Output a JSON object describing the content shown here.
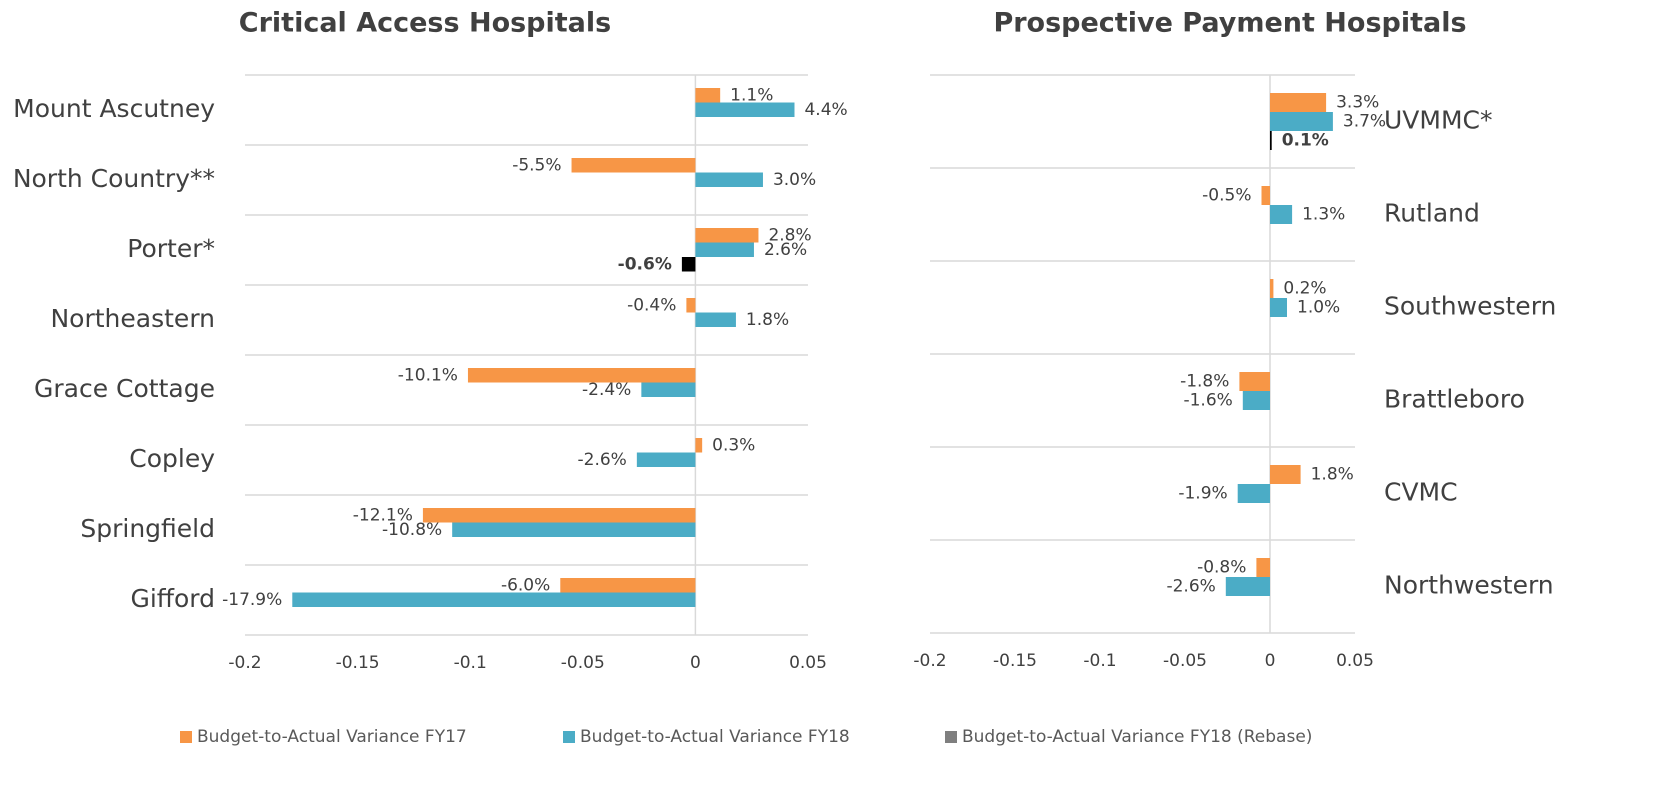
{
  "legend": [
    {
      "name": "Budget-to-Actual Variance FY17",
      "color": "#f79646"
    },
    {
      "name": "Budget-to-Actual Variance FY18",
      "color": "#4bacc6"
    },
    {
      "name": "Budget-to-Actual Variance FY18 (Rebase)",
      "color": "#7f7f7f"
    }
  ],
  "chart_data": [
    {
      "type": "hbar",
      "title": "Critical Access Hospitals",
      "categories": [
        "Mount Ascutney",
        "North Country**",
        "Porter*",
        "Northeastern",
        "Grace Cottage",
        "Copley",
        "Springfield",
        "Gifford"
      ],
      "series": [
        {
          "values": [
            0.011,
            -0.055,
            0.028,
            -0.004,
            -0.101,
            0.003,
            -0.121,
            -0.06
          ],
          "value_labels": [
            "1.1%",
            "-5.5%",
            "2.8%",
            "-0.4%",
            "-10.1%",
            "0.3%",
            "-12.1%",
            "-6.0%"
          ]
        },
        {
          "values": [
            0.044,
            0.03,
            0.026,
            0.018,
            -0.024,
            -0.026,
            -0.108,
            -0.179
          ],
          "value_labels": [
            "4.4%",
            "3.0%",
            "2.6%",
            "1.8%",
            "-2.4%",
            "-2.6%",
            "-10.8%",
            "-17.9%"
          ]
        },
        {
          "values": [
            null,
            null,
            -0.006,
            null,
            null,
            null,
            null,
            null
          ],
          "value_labels": [
            null,
            null,
            "-0.6%",
            null,
            null,
            null,
            null,
            null
          ]
        }
      ],
      "xlim": [
        -0.2,
        0.05
      ],
      "xticks": [
        -0.2,
        -0.15,
        -0.1,
        -0.05,
        0,
        0.05
      ]
    },
    {
      "type": "hbar",
      "title": "Prospective Payment Hospitals",
      "categories": [
        "UVMMC*",
        "Rutland",
        "Southwestern",
        "Brattleboro",
        "CVMC",
        "Northwestern"
      ],
      "series": [
        {
          "values": [
            0.033,
            -0.005,
            0.002,
            -0.018,
            0.018,
            -0.008
          ],
          "value_labels": [
            "3.3%",
            "-0.5%",
            "0.2%",
            "-1.8%",
            "1.8%",
            "-0.8%"
          ]
        },
        {
          "values": [
            0.037,
            0.013,
            0.01,
            -0.016,
            -0.019,
            -0.026
          ],
          "value_labels": [
            "3.7%",
            "1.3%",
            "1.0%",
            "-1.6%",
            "-1.9%",
            "-2.6%"
          ]
        },
        {
          "values": [
            0.001,
            null,
            null,
            null,
            null,
            null
          ],
          "value_labels": [
            "0.1%",
            null,
            null,
            null,
            null,
            null
          ]
        }
      ],
      "xlim": [
        -0.2,
        0.05
      ],
      "xticks": [
        -0.2,
        -0.15,
        -0.1,
        -0.05,
        0,
        0.05
      ]
    }
  ]
}
